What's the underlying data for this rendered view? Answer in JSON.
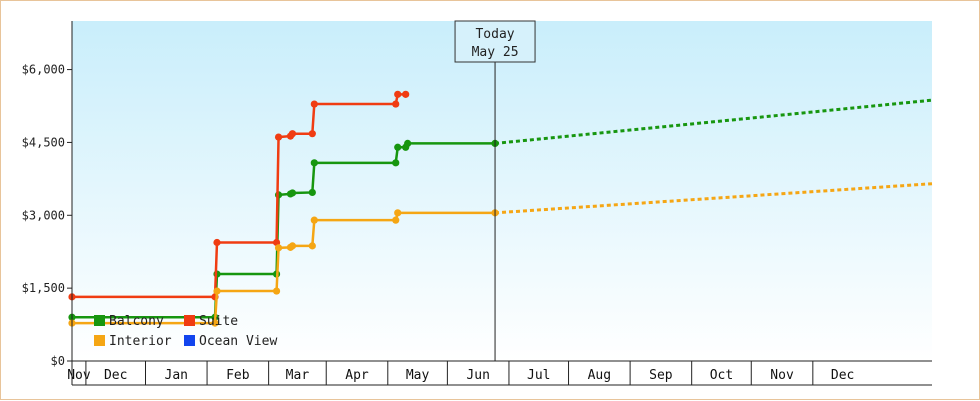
{
  "chart_data": {
    "type": "line",
    "title": "",
    "xlabel": "",
    "ylabel": "",
    "y_ticks": [
      "$0",
      "$1,500",
      "$3,000",
      "$4,500",
      "$6,000"
    ],
    "y_tick_values": [
      0,
      1500,
      3000,
      4500,
      6000
    ],
    "ylim": [
      0,
      7000
    ],
    "xlim": [
      "2019-10-25",
      "2020-12-31"
    ],
    "months": [
      "Nov",
      "Dec",
      "Jan",
      "Feb",
      "Mar",
      "Apr",
      "May",
      "Jun",
      "Jul",
      "Aug",
      "Sep",
      "Oct",
      "Nov",
      "Dec"
    ],
    "today": {
      "line1": "Today",
      "line2": "May 25",
      "date": "2020-05-25"
    },
    "grid": false,
    "legend_position": "bottom-left",
    "series": [
      {
        "name": "Balcony",
        "color": "#17960f",
        "points": [
          [
            "2019-10-25",
            900
          ],
          [
            "2020-01-05",
            900
          ],
          [
            "2020-01-06",
            1790
          ],
          [
            "2020-02-05",
            1790
          ],
          [
            "2020-02-06",
            3420
          ],
          [
            "2020-02-12",
            3440
          ],
          [
            "2020-02-13",
            3460
          ],
          [
            "2020-02-23",
            3470
          ],
          [
            "2020-02-24",
            4080
          ],
          [
            "2020-04-05",
            4080
          ],
          [
            "2020-04-06",
            4400
          ],
          [
            "2020-04-10",
            4400
          ],
          [
            "2020-04-11",
            4480
          ],
          [
            "2020-05-25",
            4480
          ]
        ],
        "forecast": [
          [
            "2020-05-25",
            4480
          ],
          [
            "2020-12-31",
            5370
          ]
        ]
      },
      {
        "name": "Suite",
        "color": "#f03c12",
        "points": [
          [
            "2019-10-25",
            1320
          ],
          [
            "2020-01-05",
            1320
          ],
          [
            "2020-01-06",
            2440
          ],
          [
            "2020-02-05",
            2440
          ],
          [
            "2020-02-06",
            4610
          ],
          [
            "2020-02-12",
            4630
          ],
          [
            "2020-02-13",
            4680
          ],
          [
            "2020-02-23",
            4680
          ],
          [
            "2020-02-24",
            5290
          ],
          [
            "2020-04-05",
            5290
          ],
          [
            "2020-04-06",
            5490
          ],
          [
            "2020-04-10",
            5490
          ]
        ]
      },
      {
        "name": "Interior",
        "color": "#f5a614",
        "points": [
          [
            "2019-10-25",
            780
          ],
          [
            "2020-01-05",
            780
          ],
          [
            "2020-01-06",
            1440
          ],
          [
            "2020-02-05",
            1440
          ],
          [
            "2020-02-06",
            2330
          ],
          [
            "2020-02-12",
            2340
          ],
          [
            "2020-02-13",
            2370
          ],
          [
            "2020-02-23",
            2370
          ],
          [
            "2020-02-24",
            2900
          ],
          [
            "2020-04-05",
            2900
          ],
          [
            "2020-04-06",
            3050
          ],
          [
            "2020-05-25",
            3050
          ]
        ],
        "forecast": [
          [
            "2020-05-25",
            3050
          ],
          [
            "2020-12-31",
            3650
          ]
        ]
      },
      {
        "name": "Ocean View",
        "color": "#1144ee",
        "points": []
      }
    ]
  }
}
